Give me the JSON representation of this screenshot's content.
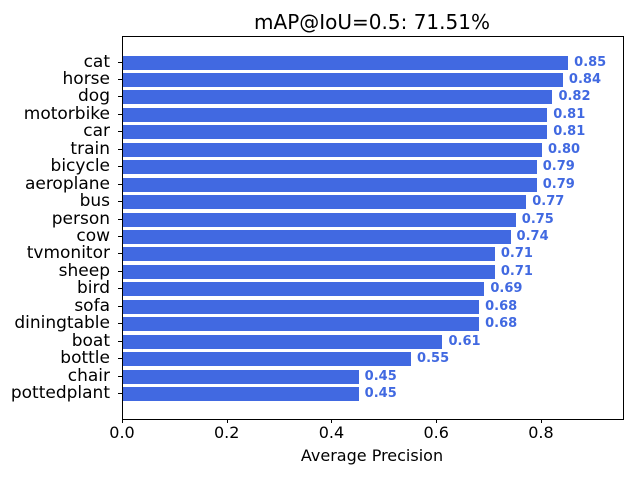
{
  "title": "mAP@IoU=0.5: 71.51%",
  "x_axis_label": "Average Precision",
  "colors": {
    "bar": "#4169e1",
    "value_text": "#4169e1",
    "axis": "#000000",
    "background": "#ffffff"
  },
  "chart_data": {
    "type": "bar",
    "orientation": "horizontal",
    "title": "mAP@IoU=0.5: 71.51%",
    "xlabel": "Average Precision",
    "ylabel": "",
    "categories": [
      "cat",
      "horse",
      "dog",
      "motorbike",
      "car",
      "train",
      "bicycle",
      "aeroplane",
      "bus",
      "person",
      "cow",
      "tvmonitor",
      "sheep",
      "bird",
      "sofa",
      "diningtable",
      "boat",
      "bottle",
      "chair",
      "pottedplant"
    ],
    "values": [
      0.85,
      0.84,
      0.82,
      0.81,
      0.81,
      0.8,
      0.79,
      0.79,
      0.77,
      0.75,
      0.74,
      0.71,
      0.71,
      0.69,
      0.68,
      0.68,
      0.61,
      0.55,
      0.45,
      0.45
    ],
    "value_labels": [
      "0.85",
      "0.84",
      "0.82",
      "0.81",
      "0.81",
      "0.80",
      "0.79",
      "0.79",
      "0.77",
      "0.75",
      "0.74",
      "0.71",
      "0.71",
      "0.69",
      "0.68",
      "0.68",
      "0.61",
      "0.55",
      "0.45",
      "0.45"
    ],
    "x_ticks": [
      0.0,
      0.2,
      0.4,
      0.6,
      0.8
    ],
    "x_tick_labels": [
      "0.0",
      "0.2",
      "0.4",
      "0.6",
      "0.8"
    ],
    "xlim": [
      0,
      0.9547
    ],
    "grid": false,
    "legend": null,
    "bar_color": "#4169e1",
    "value_label_color": "#4169e1"
  }
}
